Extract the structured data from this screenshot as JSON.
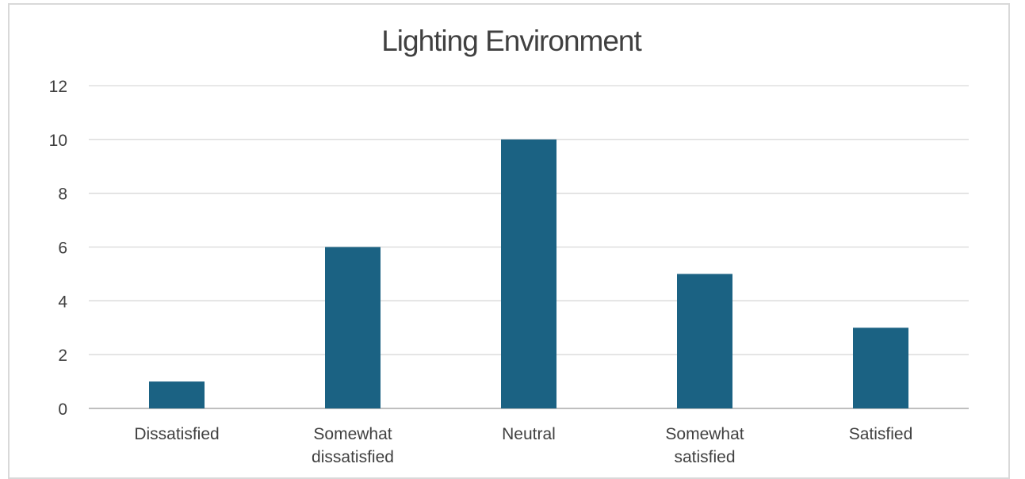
{
  "chart_data": {
    "type": "bar",
    "title": "Lighting Environment",
    "categories": [
      "Dissatisfied",
      "Somewhat dissatisfied",
      "Neutral",
      "Somewhat satisfied",
      "Satisfied"
    ],
    "category_lines": [
      [
        "Dissatisfied"
      ],
      [
        "Somewhat",
        "dissatisfied"
      ],
      [
        "Neutral"
      ],
      [
        "Somewhat",
        "satisfied"
      ],
      [
        "Satisfied"
      ]
    ],
    "values": [
      1,
      6,
      10,
      5,
      3
    ],
    "xlabel": "",
    "ylabel": "",
    "ylim": [
      0,
      12
    ],
    "yticks": [
      0,
      2,
      4,
      6,
      8,
      10,
      12
    ],
    "grid": true,
    "legend": "none",
    "bar_color": "#1b6283"
  }
}
